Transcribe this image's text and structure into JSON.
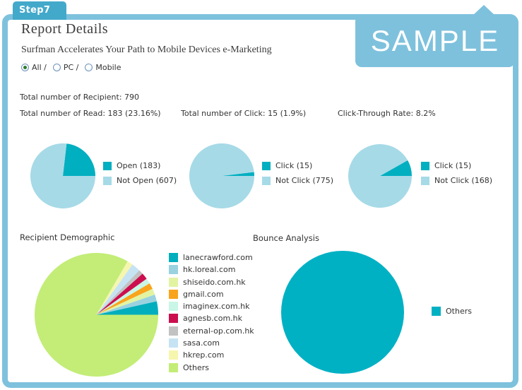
{
  "step_tab": "Step7",
  "sample_label": "SAMPLE",
  "header": {
    "title": "Report Details",
    "subtitle": "Surfman Accelerates Your Path to Mobile Devices e-Marketing"
  },
  "filters": {
    "options": [
      {
        "label": "All /",
        "selected": true
      },
      {
        "label": "PC /",
        "selected": false
      },
      {
        "label": "Mobile",
        "selected": false
      }
    ]
  },
  "stats": {
    "recipient": "Total number of Recipient: 790",
    "read": "Total number of Read: 183 (23.16%)",
    "click": "Total number of Click: 15 (1.9%)",
    "ctr": "Click-Through Rate: 8.2%"
  },
  "sections": {
    "demographic": "Recipient Demographic",
    "bounce": "Bounce Analysis"
  },
  "colors": {
    "frame_blue": "#7ec1dd",
    "tab_teal": "#43a9cb",
    "pie_teal": "#00afc0",
    "pie_light_blue": "#a6dae7",
    "text": "#333333"
  },
  "chart_data": [
    {
      "type": "pie",
      "title": "Total number of Read: 183 (23.16%)",
      "labels": [
        "Open (183)",
        "Not Open (607)"
      ],
      "values": [
        183,
        607
      ],
      "colors": [
        "#00afc0",
        "#a6dae7"
      ],
      "start_angle_deg": 0,
      "direction": "counterclockwise",
      "legend_position": "right"
    },
    {
      "type": "pie",
      "title": "Total number of Click: 15 (1.9%)",
      "labels": [
        "Click (15)",
        "Not Click (775)"
      ],
      "values": [
        15,
        775
      ],
      "colors": [
        "#00afc0",
        "#a6dae7"
      ],
      "start_angle_deg": 0,
      "direction": "counterclockwise",
      "legend_position": "right"
    },
    {
      "type": "pie",
      "title": "Click-Through Rate: 8.2%",
      "labels": [
        "Click (15)",
        "Not Click (168)"
      ],
      "values": [
        15,
        168
      ],
      "colors": [
        "#00afc0",
        "#a6dae7"
      ],
      "start_angle_deg": 0,
      "direction": "counterclockwise",
      "legend_position": "right"
    },
    {
      "type": "pie",
      "title": "Recipient Demographic",
      "labels": [
        "lanecrawford.com",
        "hk.loreal.com",
        "shiseido.com.hk",
        "gmail.com",
        "imaginex.com.hk",
        "agnesb.com.hk",
        "eternal-op.com.hk",
        "sasa.com",
        "hkrep.com",
        "Others"
      ],
      "values": [
        3.5,
        1.8,
        1.6,
        1.6,
        1.4,
        1.7,
        1.2,
        2.3,
        1.5,
        83.4
      ],
      "values_unit": "percent_estimated",
      "colors": [
        "#00aebd",
        "#9ad2e0",
        "#e2f4a2",
        "#f9a41d",
        "#c9f6e6",
        "#cc0e4f",
        "#c2c2c2",
        "#c6e3f4",
        "#f6f6ae",
        "#c3ed77"
      ],
      "start_angle_deg": 0,
      "direction": "counterclockwise",
      "legend_position": "right"
    },
    {
      "type": "pie",
      "title": "Bounce Analysis",
      "labels": [
        "Others"
      ],
      "values": [
        100
      ],
      "colors": [
        "#00b1c4"
      ],
      "start_angle_deg": 0,
      "direction": "counterclockwise",
      "legend_position": "right"
    }
  ]
}
